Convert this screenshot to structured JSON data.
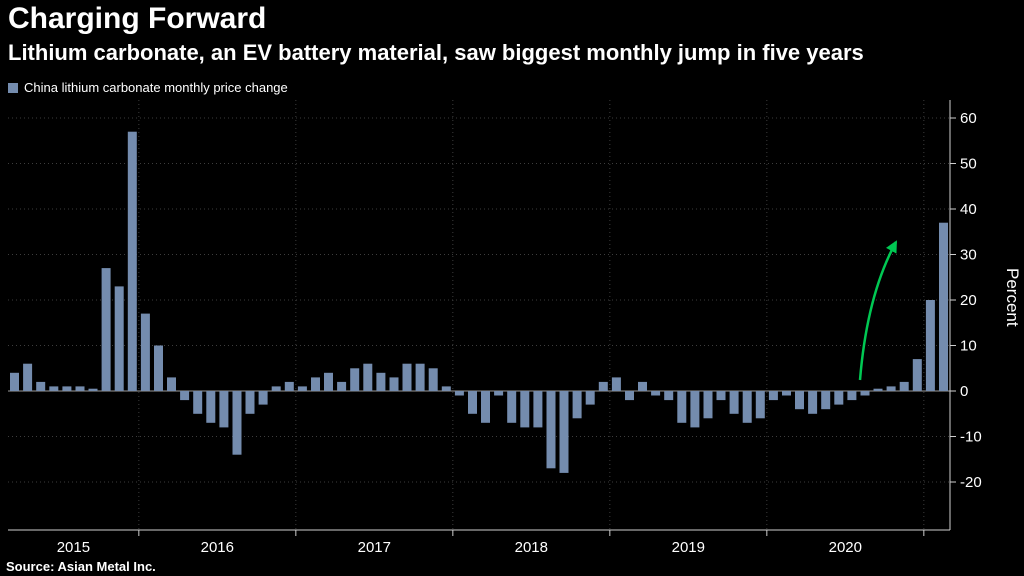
{
  "header": {
    "title": "Charging Forward",
    "subtitle": "Lithium carbonate, an EV battery material, saw biggest monthly jump in five years"
  },
  "legend": {
    "label": "China lithium carbonate monthly price change"
  },
  "source": {
    "text": "Source: Asian Metal Inc."
  },
  "colors": {
    "background": "#000000",
    "bar": "#748cae",
    "axis": "#cfcfcf",
    "grid": "#3d3d3d",
    "zero_line": "#9a9a9a",
    "text": "#ffffff",
    "arrow": "#00c853"
  },
  "chart_data": {
    "type": "bar",
    "title": "Charging Forward",
    "subtitle": "Lithium carbonate, an EV battery material, saw biggest monthly jump in five years",
    "series_name": "China lithium carbonate monthly price change",
    "xlabel": "",
    "ylabel": "Percent",
    "ylim": [
      -30,
      65
    ],
    "yticks": [
      -20,
      -10,
      0,
      10,
      20,
      30,
      40,
      50,
      60
    ],
    "grid": "dotted",
    "legend_position": "top-left",
    "year_labels": [
      "2015",
      "2016",
      "2017",
      "2018",
      "2019",
      "2020"
    ],
    "months": [
      "2015-03",
      "2015-04",
      "2015-05",
      "2015-06",
      "2015-07",
      "2015-08",
      "2015-09",
      "2015-10",
      "2015-11",
      "2015-12",
      "2016-01",
      "2016-02",
      "2016-03",
      "2016-04",
      "2016-05",
      "2016-06",
      "2016-07",
      "2016-08",
      "2016-09",
      "2016-10",
      "2016-11",
      "2016-12",
      "2017-01",
      "2017-02",
      "2017-03",
      "2017-04",
      "2017-05",
      "2017-06",
      "2017-07",
      "2017-08",
      "2017-09",
      "2017-10",
      "2017-11",
      "2017-12",
      "2018-01",
      "2018-02",
      "2018-03",
      "2018-04",
      "2018-05",
      "2018-06",
      "2018-07",
      "2018-08",
      "2018-09",
      "2018-10",
      "2018-11",
      "2018-12",
      "2019-01",
      "2019-02",
      "2019-03",
      "2019-04",
      "2019-05",
      "2019-06",
      "2019-07",
      "2019-08",
      "2019-09",
      "2019-10",
      "2019-11",
      "2019-12",
      "2020-01",
      "2020-02",
      "2020-03",
      "2020-04",
      "2020-05",
      "2020-06",
      "2020-07",
      "2020-08",
      "2020-09",
      "2020-10",
      "2020-11",
      "2020-12",
      "2021-01",
      "2021-02"
    ],
    "values": [
      4,
      6,
      2,
      1,
      1,
      1,
      0.5,
      27,
      23,
      57,
      17,
      10,
      3,
      -2,
      -5,
      -7,
      -8,
      -14,
      -5,
      -3,
      1,
      2,
      1,
      3,
      4,
      2,
      5,
      6,
      4,
      3,
      6,
      6,
      5,
      1,
      -1,
      -5,
      -7,
      -1,
      -7,
      -8,
      -8,
      -17,
      -18,
      -6,
      -3,
      2,
      3,
      -2,
      2,
      -1,
      -2,
      -7,
      -8,
      -6,
      -2,
      -5,
      -7,
      -6,
      -2,
      -1,
      -4,
      -5,
      -4,
      -3,
      -2,
      -1,
      0.5,
      1,
      2,
      7,
      20,
      37
    ],
    "annotation": {
      "type": "arrow",
      "color": "#00c853",
      "points_to": "2021-02",
      "meaning": "biggest monthly jump in five years"
    }
  }
}
